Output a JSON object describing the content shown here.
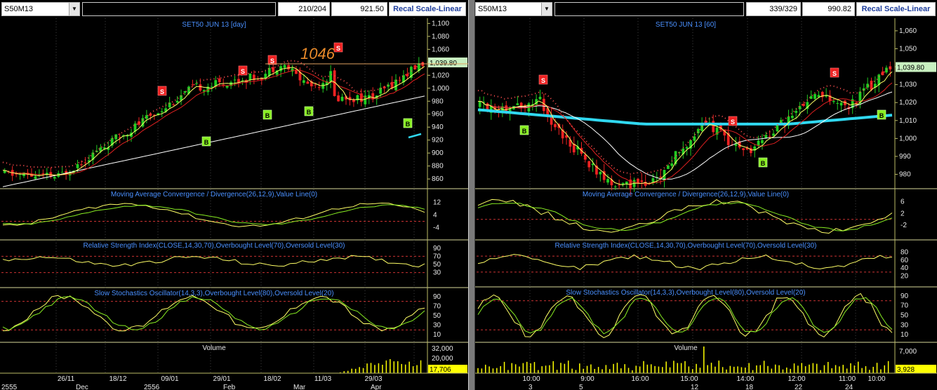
{
  "colors": {
    "bg": "#000000",
    "price_axis_bg": "#000000",
    "highlight_price": "#c8f0c0",
    "last_vol": "#ffff00",
    "ma_red": "#e02020",
    "ma_white": "#ffffff",
    "ma_yellow": "#ffff66",
    "ma_cyan": "#30d8f0",
    "candle_up": "#22cc22",
    "candle_down": "#ee2222",
    "label_blue": "#4a90ff"
  },
  "left": {
    "symbol": "S50M13",
    "count": "210/204",
    "value": "921.50",
    "recal": "Recal Scale-Linear",
    "title": "SET50 JUN 13  [day]",
    "annotation": "1046",
    "price_ticks": [
      "1,100",
      "1,080",
      "1,060",
      "1,040",
      "1,020",
      "1,000",
      "980",
      "960",
      "940",
      "920",
      "900",
      "880",
      "860"
    ],
    "last_price": "1,039.80",
    "macd_title": "Moving Average Convergence / Divergence(26,12,9),Value Line(0)",
    "macd_ticks": [
      "12",
      "4",
      "-4"
    ],
    "rsi_title": "Relative Strength Index(CLOSE,14,30,70),Overbought Level(70),Oversold Level(30)",
    "rsi_ticks": [
      "90",
      "70",
      "50",
      "30"
    ],
    "stoch_title": "Slow Stochastics Oscillator(14,3,3),Overbought Level(80),Oversold Level(20)",
    "stoch_ticks": [
      "90",
      "70",
      "50",
      "30",
      "10"
    ],
    "vol_title": "Volume",
    "vol_ticks": [
      "32,000",
      "20,000"
    ],
    "last_vol": "17,706",
    "x_labels_top": [
      "26/11",
      "18/12",
      "09/01",
      "29/01",
      "18/02",
      "11/03",
      "29/03"
    ],
    "x_labels_bottom": [
      "2555",
      "Dec",
      "2556",
      "Feb",
      "Mar",
      "Apr"
    ]
  },
  "right": {
    "symbol": "S50M13",
    "count": "339/329",
    "value": "990.82",
    "recal": "Recal Scale-Linear",
    "title": "SET50 JUN 13    [60]",
    "price_ticks": [
      "1,060",
      "1,050",
      "1,040",
      "1,030",
      "1,020",
      "1,010",
      "1,000",
      "990",
      "980"
    ],
    "last_price": "1,039.80",
    "macd_title": "Moving Average Convergence / Divergence(26,12,9),Value Line(0)",
    "macd_ticks": [
      "6",
      "2",
      "-2"
    ],
    "rsi_title": "Relative Strength Index(CLOSE,14,30,70),Overbought Level(70),Oversold Level(30)",
    "rsi_ticks": [
      "80",
      "60",
      "40",
      "20"
    ],
    "stoch_title": "Slow Stochastics Oscillator(14,3,3),Overbought Level(80),Oversold Level(20)",
    "stoch_ticks": [
      "90",
      "70",
      "50",
      "30",
      "10"
    ],
    "vol_title": "Volume",
    "vol_ticks": [
      "7,000"
    ],
    "last_vol": "3,928",
    "x_labels_top": [
      "10:00",
      "9:00",
      "16:00",
      "15:00",
      "14:00",
      "12:00",
      "11:00",
      "10:00"
    ],
    "x_labels_bottom": [
      "3",
      "5",
      "12",
      "18",
      "22",
      "24"
    ]
  }
}
